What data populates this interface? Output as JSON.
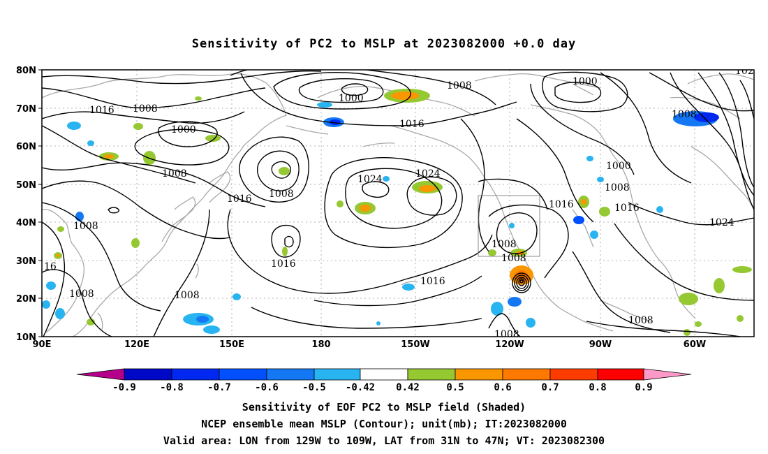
{
  "title": "Sensitivity of PC2 to MSLP at 2023082000 +0.0 day",
  "map": {
    "lat_ticks": [
      "80N",
      "70N",
      "60N",
      "50N",
      "40N",
      "30N",
      "20N",
      "10N"
    ],
    "lon_ticks": [
      "90E",
      "120E",
      "150E",
      "180",
      "150W",
      "120W",
      "90W",
      "60W"
    ],
    "lon_range": [
      "90E",
      "40W"
    ],
    "lat_range": [
      "10N",
      "80N"
    ],
    "grid": true,
    "valid_box": {
      "lon": [
        "129W",
        "109W"
      ],
      "lat": [
        "31N",
        "47N"
      ]
    },
    "contour_labels": [
      "1016",
      "1008",
      "1000",
      "1008",
      "1008",
      "1008",
      "1016",
      "1016",
      "1000",
      "1008",
      "1016",
      "1024",
      "1024",
      "1016",
      "1016",
      "1008",
      "1008",
      "1008",
      "1016",
      "1000",
      "1008",
      "1000",
      "1008",
      "1016",
      "1016",
      "1024",
      "1008",
      "1008",
      "1008",
      "16",
      "102"
    ]
  },
  "colorbar": {
    "labels": [
      "-0.9",
      "-0.8",
      "-0.7",
      "-0.6",
      "-0.5",
      "-0.42",
      "0.42",
      "0.5",
      "0.6",
      "0.7",
      "0.8",
      "0.9"
    ],
    "colors": [
      "#b5008c",
      "#0008c8",
      "#0028f0",
      "#0050ff",
      "#1478f5",
      "#28b4f0",
      "#ffffff",
      "#96c832",
      "#fa9600",
      "#ff7800",
      "#ff3c00",
      "#ff0000",
      "#ff9ac8"
    ]
  },
  "caption": {
    "line1": "Sensitivity of EOF PC2 to MSLP field (Shaded)",
    "line2": "NCEP ensemble mean MSLP (Contour); unit(mb); IT:2023082000",
    "line3": "Valid area: LON from 129W to 109W, LAT from 31N to 47N; VT: 2023082300"
  }
}
